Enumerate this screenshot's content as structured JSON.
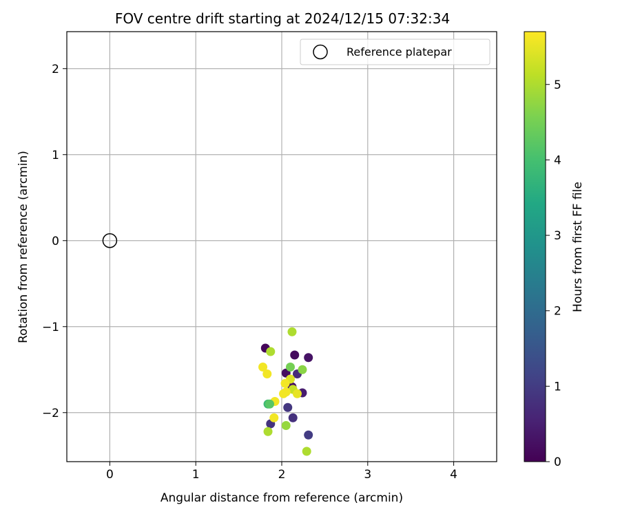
{
  "chart_data": {
    "type": "scatter",
    "title": "FOV centre drift starting at 2024/12/15 07:32:34",
    "xlabel": "Angular distance from reference (arcmin)",
    "ylabel": "Rotation from reference (arcmin)",
    "xlim": [
      -0.5,
      4.5
    ],
    "ylim": [
      -2.57,
      2.43
    ],
    "xticks": [
      0,
      1,
      2,
      3,
      4
    ],
    "yticks": [
      -2,
      -1,
      0,
      1,
      2
    ],
    "xtick_labels": [
      "0",
      "1",
      "2",
      "3",
      "4"
    ],
    "ytick_labels": [
      "−2",
      "−1",
      "0",
      "1",
      "2"
    ],
    "grid": true,
    "legend": {
      "placement": "top-right",
      "entries": [
        "Reference platepar"
      ]
    },
    "reference": {
      "name": "Reference platepar",
      "x": 0,
      "y": 0,
      "marker": "open-circle"
    },
    "colorbar": {
      "label": "Hours from first FF file",
      "range": [
        0,
        5.7
      ],
      "ticks": [
        0,
        1,
        2,
        3,
        4,
        5
      ],
      "tick_labels": [
        "0",
        "1",
        "2",
        "3",
        "4",
        "5"
      ],
      "colormap": "viridis"
    },
    "points": [
      {
        "x": 1.81,
        "y": -1.25,
        "c": 0.1
      },
      {
        "x": 2.15,
        "y": -1.33,
        "c": 0.15
      },
      {
        "x": 2.31,
        "y": -1.36,
        "c": 0.3
      },
      {
        "x": 2.05,
        "y": -1.54,
        "c": 0.2
      },
      {
        "x": 2.18,
        "y": -1.55,
        "c": 0.7
      },
      {
        "x": 2.12,
        "y": -1.7,
        "c": 0.25
      },
      {
        "x": 2.24,
        "y": -1.77,
        "c": 0.45
      },
      {
        "x": 2.07,
        "y": -1.94,
        "c": 0.9
      },
      {
        "x": 2.13,
        "y": -2.06,
        "c": 0.8
      },
      {
        "x": 1.87,
        "y": -2.13,
        "c": 0.85
      },
      {
        "x": 2.31,
        "y": -2.26,
        "c": 1.0
      },
      {
        "x": 2.12,
        "y": -1.06,
        "c": 5.0
      },
      {
        "x": 1.87,
        "y": -1.29,
        "c": 5.0
      },
      {
        "x": 2.1,
        "y": -1.47,
        "c": 4.5
      },
      {
        "x": 2.24,
        "y": -1.5,
        "c": 4.7
      },
      {
        "x": 1.78,
        "y": -1.47,
        "c": 5.6
      },
      {
        "x": 1.83,
        "y": -1.55,
        "c": 5.6
      },
      {
        "x": 2.1,
        "y": -1.61,
        "c": 5.4
      },
      {
        "x": 2.04,
        "y": -1.66,
        "c": 5.6
      },
      {
        "x": 2.13,
        "y": -1.73,
        "c": 5.2
      },
      {
        "x": 2.02,
        "y": -1.78,
        "c": 5.6
      },
      {
        "x": 2.18,
        "y": -1.78,
        "c": 5.5
      },
      {
        "x": 2.05,
        "y": -1.76,
        "c": 5.6
      },
      {
        "x": 1.92,
        "y": -1.87,
        "c": 5.6
      },
      {
        "x": 1.84,
        "y": -1.9,
        "c": 3.9
      },
      {
        "x": 1.86,
        "y": -1.9,
        "c": 4.2
      },
      {
        "x": 1.91,
        "y": -2.06,
        "c": 5.6
      },
      {
        "x": 2.05,
        "y": -2.15,
        "c": 4.8
      },
      {
        "x": 1.84,
        "y": -2.22,
        "c": 5.0
      },
      {
        "x": 2.29,
        "y": -2.45,
        "c": 5.0
      }
    ]
  }
}
